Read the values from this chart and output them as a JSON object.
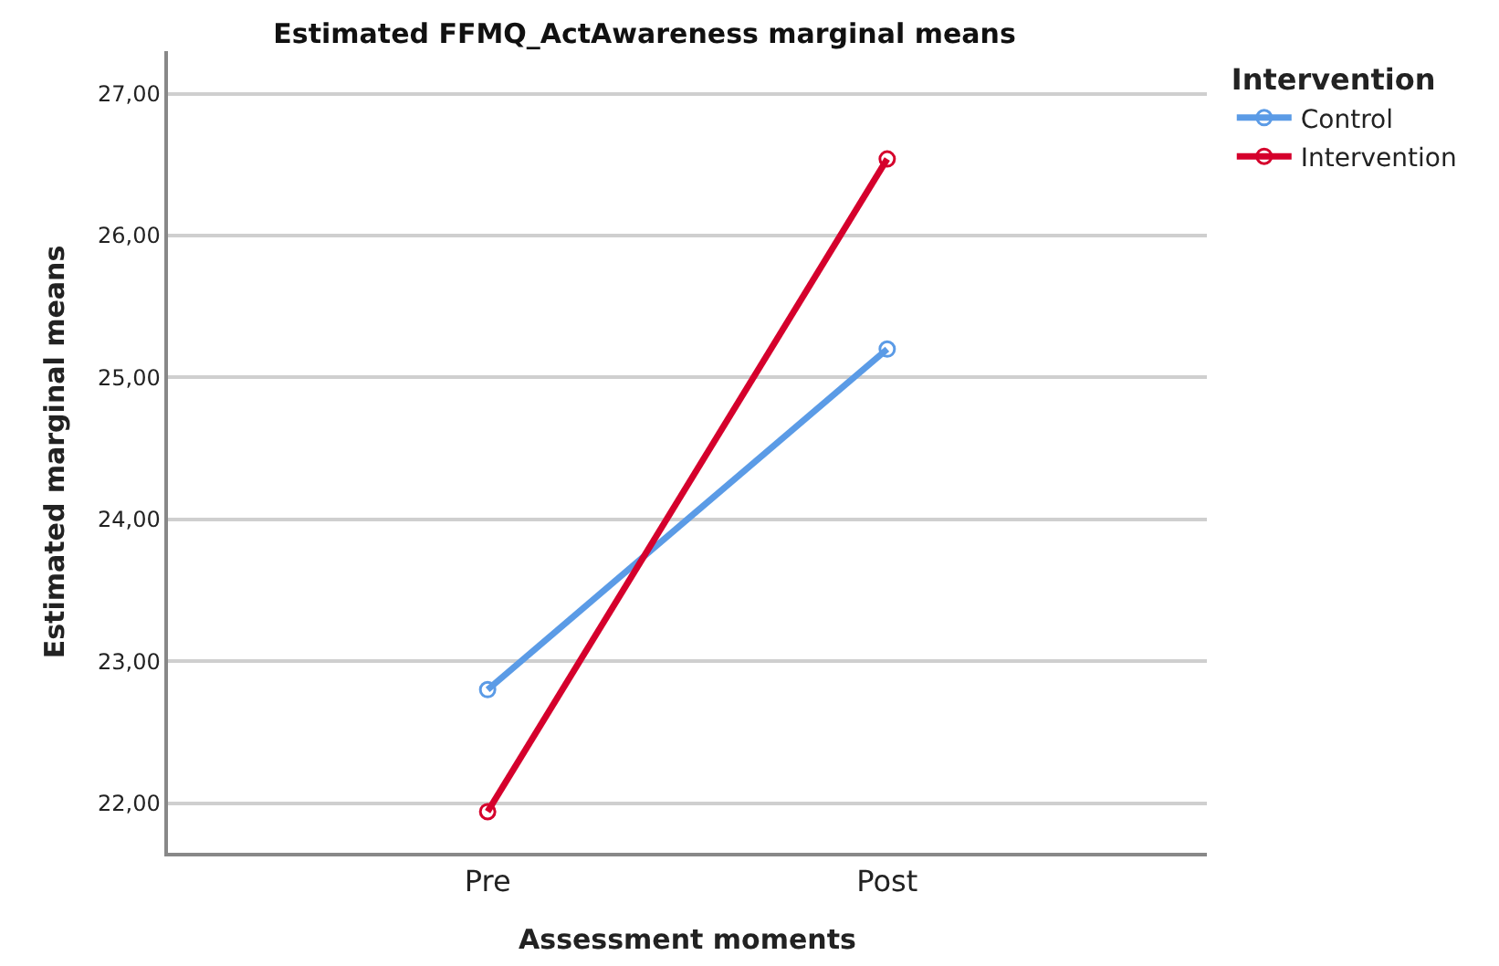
{
  "chart_data": {
    "type": "line",
    "title": "Estimated FFMQ_ActAwareness marginal means",
    "xlabel": "Assessment moments",
    "ylabel": "Estimated marginal means",
    "legend_title": "Intervention",
    "categories": [
      "Pre",
      "Post"
    ],
    "series": [
      {
        "name": "Control",
        "color": "#5b9be6",
        "values": [
          22.8,
          25.2
        ]
      },
      {
        "name": "Intervention",
        "color": "#d5002c",
        "values": [
          21.94,
          26.54
        ]
      }
    ],
    "ylim": [
      21.65,
      27.3
    ],
    "yticks": [
      {
        "value": 22,
        "label": "22,00"
      },
      {
        "value": 23,
        "label": "23,00"
      },
      {
        "value": 24,
        "label": "24,00"
      },
      {
        "value": 25,
        "label": "25,00"
      },
      {
        "value": 26,
        "label": "26,00"
      },
      {
        "value": 27,
        "label": "27,00"
      }
    ],
    "grid": "y",
    "legend": "top right",
    "marker": "circle",
    "line_style": "solid"
  }
}
